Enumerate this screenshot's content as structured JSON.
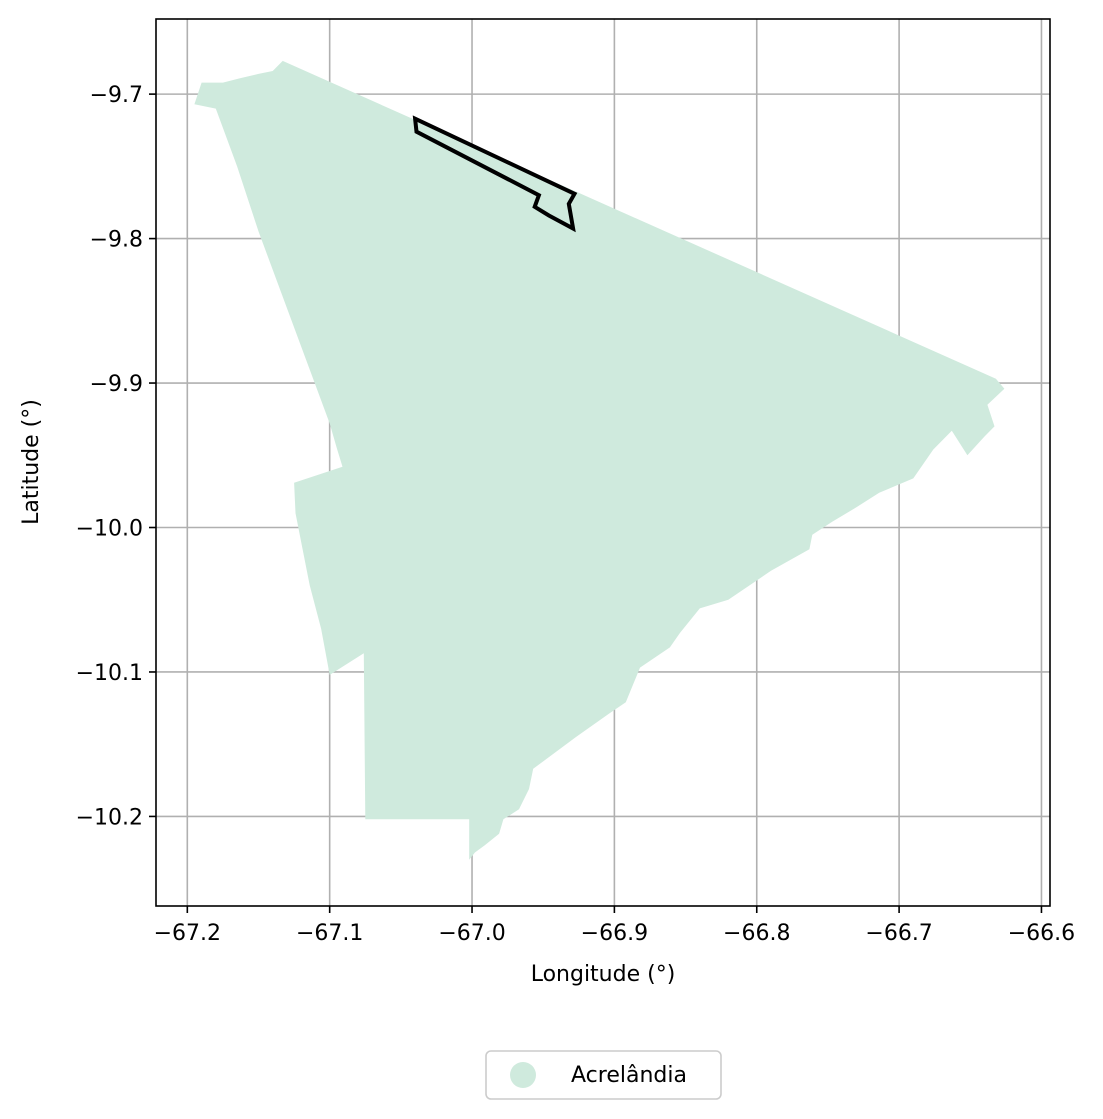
{
  "chart_data": {
    "type": "map",
    "xlabel": "Longitude (°)",
    "ylabel": "Latitude (°)",
    "xlim": [
      -67.222,
      -66.594
    ],
    "ylim": [
      -10.262,
      -9.648
    ],
    "x_ticks": [
      -67.2,
      -67.1,
      -67.0,
      -66.9,
      -66.8,
      -66.7,
      -66.6
    ],
    "x_tick_labels": [
      "−67.2",
      "−67.1",
      "−67.0",
      "−66.9",
      "−66.8",
      "−66.7",
      "−66.6"
    ],
    "y_ticks": [
      -9.7,
      -9.8,
      -9.9,
      -10.0,
      -10.1,
      -10.2
    ],
    "y_tick_labels": [
      "−9.7",
      "−9.8",
      "−9.9",
      "−10.0",
      "−10.1",
      "−10.2"
    ],
    "grid": true,
    "legend_position": "bottom-center",
    "regions": [
      {
        "name": "Acrelândia",
        "fill": "#cfeadd",
        "boundary": [
          [
            -67.133,
            -9.677
          ],
          [
            -66.632,
            -9.897
          ],
          [
            -66.626,
            -9.904
          ],
          [
            -66.638,
            -9.915
          ],
          [
            -66.633,
            -9.93
          ],
          [
            -66.64,
            -9.937
          ],
          [
            -66.652,
            -9.95
          ],
          [
            -66.663,
            -9.933
          ],
          [
            -66.676,
            -9.946
          ],
          [
            -66.69,
            -9.966
          ],
          [
            -66.714,
            -9.976
          ],
          [
            -66.73,
            -9.986
          ],
          [
            -66.747,
            -9.996
          ],
          [
            -66.761,
            -10.005
          ],
          [
            -66.763,
            -10.015
          ],
          [
            -66.79,
            -10.03
          ],
          [
            -66.82,
            -10.05
          ],
          [
            -66.84,
            -10.056
          ],
          [
            -66.854,
            -10.073
          ],
          [
            -66.861,
            -10.083
          ],
          [
            -66.882,
            -10.097
          ],
          [
            -66.892,
            -10.121
          ],
          [
            -66.904,
            -10.129
          ],
          [
            -66.927,
            -10.145
          ],
          [
            -66.957,
            -10.167
          ],
          [
            -66.96,
            -10.181
          ],
          [
            -66.967,
            -10.195
          ],
          [
            -66.978,
            -10.202
          ],
          [
            -66.981,
            -10.212
          ],
          [
            -66.991,
            -10.22
          ],
          [
            -66.998,
            -10.225
          ],
          [
            -67.002,
            -10.23
          ],
          [
            -67.002,
            -10.202
          ],
          [
            -67.075,
            -10.202
          ],
          [
            -67.076,
            -10.087
          ],
          [
            -67.1,
            -10.102
          ],
          [
            -67.106,
            -10.07
          ],
          [
            -67.114,
            -10.04
          ],
          [
            -67.119,
            -10.015
          ],
          [
            -67.124,
            -9.99
          ],
          [
            -67.125,
            -9.969
          ],
          [
            -67.091,
            -9.958
          ],
          [
            -67.095,
            -9.945
          ],
          [
            -67.1,
            -9.928
          ],
          [
            -67.115,
            -9.888
          ],
          [
            -67.15,
            -9.795
          ],
          [
            -67.165,
            -9.75
          ],
          [
            -67.18,
            -9.71
          ],
          [
            -67.195,
            -9.707
          ],
          [
            -67.19,
            -9.692
          ],
          [
            -67.175,
            -9.692
          ],
          [
            -67.163,
            -9.689
          ],
          [
            -67.15,
            -9.686
          ],
          [
            -67.14,
            -9.684
          ]
        ]
      }
    ],
    "outlines": [
      {
        "stroke": "#000000",
        "boundary": [
          [
            -67.04,
            -9.717
          ],
          [
            -66.928,
            -9.769
          ],
          [
            -66.932,
            -9.776
          ],
          [
            -66.929,
            -9.793
          ],
          [
            -66.946,
            -9.784
          ],
          [
            -66.956,
            -9.778
          ],
          [
            -66.953,
            -9.77
          ],
          [
            -67.039,
            -9.726
          ]
        ]
      }
    ],
    "legend": [
      {
        "label": "Acrelândia",
        "color": "#cfeadd"
      }
    ]
  }
}
